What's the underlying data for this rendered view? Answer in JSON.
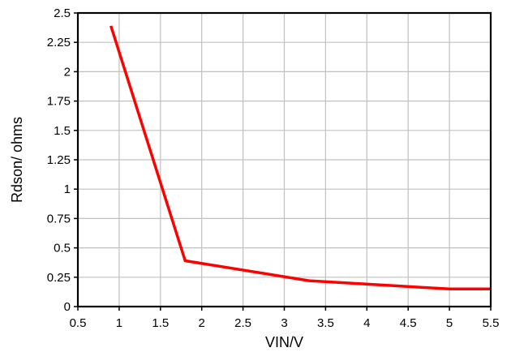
{
  "chart_data": {
    "type": "line",
    "title": "",
    "xlabel": "VIN/V",
    "ylabel": "Rdson/ ohms",
    "xlim": [
      0.5,
      5.5
    ],
    "ylim": [
      0,
      2.5
    ],
    "x_ticks": [
      "0.5",
      "1",
      "1.5",
      "2",
      "2.5",
      "3",
      "3.5",
      "4",
      "4.5",
      "5",
      "5.5"
    ],
    "y_ticks": [
      "0",
      "0.25",
      "0.5",
      "0.75",
      "1",
      "1.25",
      "1.5",
      "1.75",
      "2",
      "2.25",
      "2.5"
    ],
    "grid": true,
    "series": [
      {
        "color": "#ff0000",
        "x": [
          0.9,
          1.8,
          3.3,
          5.0,
          5.5
        ],
        "y": [
          2.39,
          0.39,
          0.22,
          0.15,
          0.15
        ]
      }
    ]
  }
}
